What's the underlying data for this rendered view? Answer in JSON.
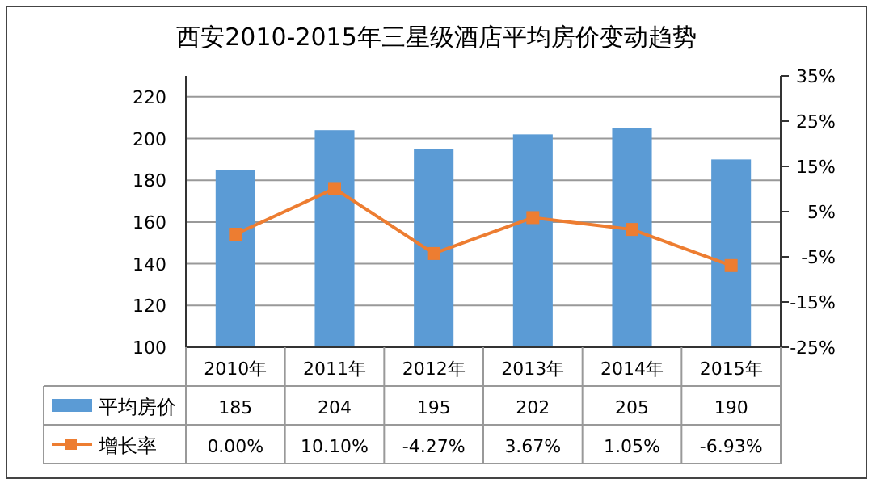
{
  "chart_data": {
    "type": "bar",
    "title": "西安2010-2015年三星级酒店平均房价变动趋势",
    "categories": [
      "2010年",
      "2011年",
      "2012年",
      "2013年",
      "2014年",
      "2015年"
    ],
    "series": [
      {
        "name": "平均房价",
        "color": "#5b9bd5",
        "values": [
          185,
          204,
          195,
          202,
          205,
          190
        ],
        "value_labels": [
          "185",
          "204",
          "195",
          "202",
          "205",
          "190"
        ]
      },
      {
        "name": "增长率",
        "type": "line",
        "axis": "y2",
        "color": "#ed7d31",
        "values": [
          0.0,
          10.1,
          -4.27,
          3.67,
          1.05,
          -6.93
        ],
        "value_labels": [
          "0.00%",
          "10.10%",
          "-4.27%",
          "3.67%",
          "1.05%",
          "-6.93%"
        ]
      }
    ],
    "ylim": [
      100,
      230
    ],
    "yticks": [
      100,
      120,
      140,
      160,
      180,
      200,
      220
    ],
    "y2lim": [
      -25,
      35
    ],
    "y2ticks": [
      {
        "value": -25,
        "label": "-25%"
      },
      {
        "value": -15,
        "label": "-15%"
      },
      {
        "value": -5,
        "label": "-5%"
      },
      {
        "value": 5,
        "label": "5%"
      },
      {
        "value": 15,
        "label": "15%"
      },
      {
        "value": 25,
        "label": "25%"
      },
      {
        "value": 35,
        "label": "35%"
      }
    ],
    "grid": "y",
    "legend": "bottom",
    "marker": "square"
  }
}
